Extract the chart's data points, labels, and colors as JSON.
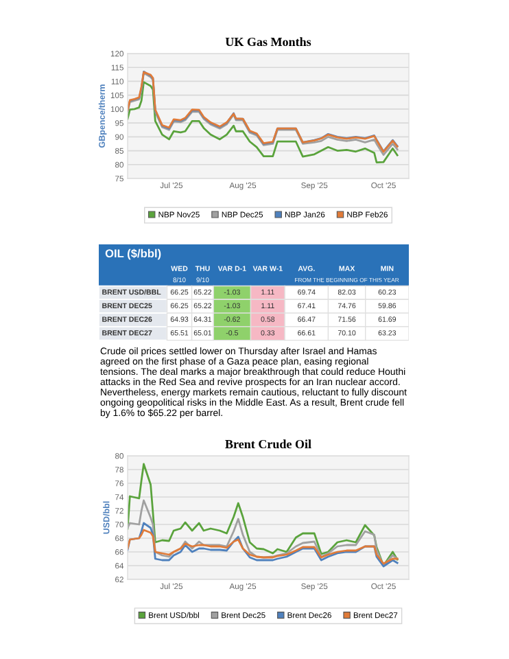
{
  "chart_data": [
    {
      "type": "line",
      "title": "UK Gas Months",
      "ylabel": "GBpence/therm",
      "x": [
        "2025-06-12",
        "2025-06-13",
        "2025-06-15",
        "2025-06-17",
        "2025-06-18",
        "2025-06-19",
        "2025-06-22",
        "2025-06-23",
        "2025-06-24",
        "2025-06-27",
        "2025-06-30",
        "2025-07-02",
        "2025-07-05",
        "2025-07-07",
        "2025-07-10",
        "2025-07-13",
        "2025-07-15",
        "2025-07-18",
        "2025-07-22",
        "2025-07-25",
        "2025-07-28",
        "2025-07-29",
        "2025-08-01",
        "2025-08-04",
        "2025-08-07",
        "2025-08-10",
        "2025-08-14",
        "2025-08-16",
        "2025-08-24",
        "2025-08-27",
        "2025-09-01",
        "2025-09-04",
        "2025-09-07",
        "2025-09-11",
        "2025-09-15",
        "2025-09-19",
        "2025-09-23",
        "2025-09-27",
        "2025-09-28",
        "2025-10-01",
        "2025-10-05",
        "2025-10-07"
      ],
      "series": [
        {
          "name": "NBP Nov25",
          "color": "#5aa33c",
          "values": [
            96.5,
            99.8,
            100,
            100.6,
            103,
            109.7,
            108.3,
            107,
            95.7,
            90.8,
            89.1,
            92,
            91.6,
            92,
            95.7,
            95.7,
            93.2,
            90.8,
            89.1,
            90.8,
            94,
            92,
            92,
            88.3,
            86.3,
            83,
            83,
            88.3,
            88.3,
            82.9,
            83.7,
            85,
            86.3,
            85,
            85.3,
            84.7,
            85.8,
            84.2,
            80.8,
            80.9,
            85.8,
            83.4
          ]
        },
        {
          "name": "NBP Dec25",
          "color": "#a0a0a0",
          "values": [
            99,
            102.5,
            103,
            103.5,
            107,
            113,
            111.5,
            110.5,
            99,
            93.5,
            92.5,
            95.5,
            95.3,
            96,
            99,
            99,
            96.5,
            94.5,
            93,
            94.5,
            98,
            96,
            96,
            91.5,
            90.5,
            87,
            87.5,
            92.5,
            92.5,
            87.5,
            88,
            88.5,
            90,
            89,
            88.5,
            89,
            88,
            89,
            87.5,
            83.5,
            87.5,
            85.5
          ]
        },
        {
          "name": "NBP Jan26",
          "color": "#4f81bd",
          "values": [
            99.5,
            103,
            103.5,
            104,
            107.5,
            113.5,
            112,
            111,
            99.5,
            94,
            93,
            96,
            95.8,
            96.5,
            99.5,
            99.5,
            97,
            95,
            93.5,
            95,
            98.5,
            96.5,
            96.5,
            92,
            91,
            87.5,
            88,
            93,
            93,
            88,
            88.8,
            89.5,
            91,
            90,
            89.5,
            90,
            89.5,
            90.5,
            89,
            84.8,
            88.8,
            86.7
          ]
        },
        {
          "name": "NBP Feb26",
          "color": "#e07b39",
          "values": [
            99.6,
            103.2,
            103.6,
            104.2,
            108,
            113.3,
            112.3,
            111.2,
            99.8,
            94.2,
            93.3,
            96.3,
            96,
            96.8,
            99.8,
            99.7,
            97.2,
            95.2,
            93.7,
            95.2,
            98.3,
            96.6,
            96.5,
            92.2,
            91.2,
            87.7,
            88.2,
            93,
            93,
            88,
            88.7,
            89.4,
            90.8,
            89.8,
            89.3,
            89.8,
            89.3,
            90.3,
            88.8,
            84.6,
            88.6,
            86.5
          ]
        }
      ],
      "xlim": [
        "2025-06-12",
        "2025-10-12"
      ],
      "xticks": [
        {
          "value": "2025-07-01",
          "label": "Jul '25"
        },
        {
          "value": "2025-08-01",
          "label": "Aug '25"
        },
        {
          "value": "2025-09-01",
          "label": "Sep '25"
        },
        {
          "value": "2025-10-01",
          "label": "Oct '25"
        }
      ],
      "ylim": [
        75,
        120
      ],
      "yticks": [
        75,
        80,
        85,
        90,
        95,
        100,
        105,
        110,
        115,
        120
      ],
      "grid": "y",
      "legend": "bottom"
    },
    {
      "type": "other",
      "title": "OIL ($/bbl)",
      "categories": [
        "WED",
        "THU",
        "VAR D-1",
        "VAR W-1",
        "AVG.",
        "MAX",
        "MIN"
      ],
      "y_categories": [
        "BRENT USD/BBL",
        "BRENT DEC25",
        "BRENT DEC26",
        "BRENT DEC27"
      ],
      "cell_labels": [
        [
          "66.25",
          "65.22",
          "-1.03",
          "1.11",
          "69.74",
          "82.03",
          "60.23"
        ],
        [
          "66.25",
          "65.22",
          "-1.03",
          "1.11",
          "67.41",
          "74.76",
          "59.86"
        ],
        [
          "64.93",
          "64.31",
          "-0.62",
          "0.58",
          "66.47",
          "71.56",
          "61.69"
        ],
        [
          "65.51",
          "65.01",
          "-0.5",
          "0.33",
          "66.61",
          "70.10",
          "63.23"
        ]
      ],
      "annotations": [
        "8/10",
        "9/10",
        "FROM THE BEGINNING OF THIS YEAR",
        "Crude oil prices settled lower on Thursday after Israel and Hamas agreed on the first phase of a Gaza peace plan, easing regional tensions. The deal marks a major breakthrough that could reduce Houthi attacks in the Red Sea and revive prospects for an Iran nuclear accord. Nevertheless, energy markets remain cautious, reluctant to fully discount ongoing geopolitical risks in the Middle East. As a result, Brent crude fell by 1.6% to $65.22 per barrel."
      ]
    },
    {
      "type": "line",
      "title": "Brent Crude Oil",
      "ylabel": "USD/bbl",
      "x": [
        "2025-06-12",
        "2025-06-13",
        "2025-06-17",
        "2025-06-18",
        "2025-06-19",
        "2025-06-22",
        "2025-06-23",
        "2025-06-24",
        "2025-06-27",
        "2025-06-30",
        "2025-07-02",
        "2025-07-05",
        "2025-07-07",
        "2025-07-10",
        "2025-07-13",
        "2025-07-15",
        "2025-07-18",
        "2025-07-22",
        "2025-07-25",
        "2025-07-28",
        "2025-07-30",
        "2025-08-01",
        "2025-08-04",
        "2025-08-07",
        "2025-08-10",
        "2025-08-14",
        "2025-08-16",
        "2025-08-20",
        "2025-08-24",
        "2025-08-27",
        "2025-09-01",
        "2025-09-04",
        "2025-09-07",
        "2025-09-11",
        "2025-09-15",
        "2025-09-19",
        "2025-09-23",
        "2025-09-27",
        "2025-09-28",
        "2025-10-01",
        "2025-10-05",
        "2025-10-07"
      ],
      "series": [
        {
          "name": "Brent USD/bbl",
          "color": "#5aa33c",
          "values": [
            69.4,
            74.1,
            73.8,
            76.4,
            78.8,
            75.8,
            71.7,
            67.4,
            67.7,
            67.6,
            69.1,
            69.4,
            70.3,
            69.1,
            70.2,
            69.1,
            69.4,
            69.1,
            68.7,
            71.1,
            73.1,
            71.1,
            67.4,
            66.5,
            66.4,
            65.8,
            66.4,
            66,
            68.1,
            68.7,
            68.7,
            65.7,
            66,
            67.4,
            67.7,
            67.4,
            69.9,
            68.4,
            66.7,
            64,
            66,
            64.9
          ]
        },
        {
          "name": "Brent Dec25",
          "color": "#a0a0a0",
          "values": [
            69.5,
            70.2,
            70,
            72,
            73.5,
            71,
            70,
            66,
            65.5,
            65.3,
            66,
            66.5,
            67.5,
            66.5,
            67.5,
            67,
            67,
            67,
            66.8,
            69,
            70.8,
            68.5,
            66,
            65.3,
            65.2,
            65.3,
            65.5,
            65.8,
            66.8,
            67.3,
            67.5,
            65.3,
            65.8,
            66.8,
            67,
            67,
            69,
            68.5,
            66.3,
            64,
            65.5,
            65
          ]
        },
        {
          "name": "Brent Dec26",
          "color": "#4f81bd",
          "values": [
            66.3,
            67.8,
            68,
            69,
            70.2,
            69.5,
            68.5,
            65,
            64.8,
            64.8,
            65.5,
            66,
            67,
            66,
            66.5,
            66.5,
            66.3,
            66.3,
            66.2,
            67.5,
            68.2,
            66.5,
            65.2,
            64.8,
            64.8,
            64.8,
            65,
            65.3,
            66,
            66.5,
            66.5,
            64.8,
            65.3,
            65.8,
            66,
            66,
            66.8,
            66.8,
            65.3,
            63.9,
            64.8,
            64.4
          ]
        },
        {
          "name": "Brent Dec27",
          "color": "#e07b39",
          "values": [
            66.5,
            67.8,
            68,
            68.5,
            69.2,
            68.8,
            68.3,
            66,
            65.8,
            65.6,
            66,
            66.5,
            67.2,
            66.8,
            67,
            67,
            66.8,
            66.8,
            66.6,
            67.5,
            67.8,
            66.5,
            65.6,
            65.3,
            65.2,
            65.2,
            65.4,
            65.6,
            66.2,
            66.7,
            66.7,
            65.2,
            65.6,
            66,
            66.2,
            66.2,
            66.8,
            66.8,
            65.6,
            64.3,
            65,
            65
          ]
        }
      ],
      "xlim": [
        "2025-06-12",
        "2025-10-12"
      ],
      "xticks": [
        {
          "value": "2025-07-01",
          "label": "Jul '25"
        },
        {
          "value": "2025-08-01",
          "label": "Aug '25"
        },
        {
          "value": "2025-09-01",
          "label": "Sep '25"
        },
        {
          "value": "2025-10-01",
          "label": "Oct '25"
        }
      ],
      "ylim": [
        62,
        80
      ],
      "yticks": [
        62,
        64,
        66,
        68,
        70,
        72,
        74,
        76,
        78,
        80
      ],
      "grid": "y",
      "legend": "bottom"
    }
  ]
}
